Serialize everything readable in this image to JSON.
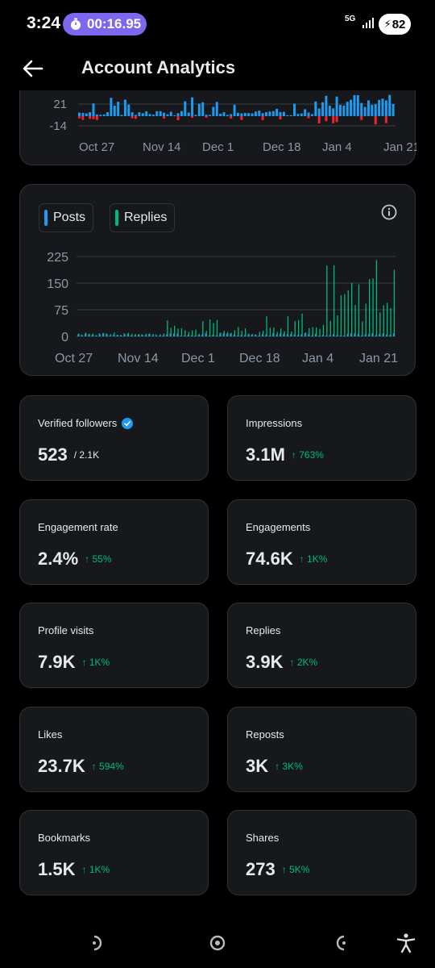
{
  "status": {
    "time": "3:24",
    "timer": "00:16.95",
    "network": "5G",
    "battery": "82"
  },
  "header": {
    "title": "Account Analytics"
  },
  "icons": {
    "back": "arrow-left-icon",
    "info": "info-icon",
    "verified": "verified-badge-icon",
    "up": "arrow-up-icon"
  },
  "colors": {
    "posts": "#1d9bf0",
    "replies": "#00ba7c",
    "negative": "#f4212e",
    "positive_change": "#00ba7c",
    "card": "#16181c",
    "border": "#2f3336"
  },
  "chart_data": [
    {
      "type": "bar",
      "y_ticks": [
        "21",
        "-14"
      ],
      "x_ticks": [
        "Oct 27",
        "Nov 14",
        "Dec 1",
        "Dec 18",
        "Jan 4",
        "Jan 21"
      ],
      "series_colors": [
        "#1d9bf0",
        "#f4212e"
      ]
    },
    {
      "type": "bar",
      "legend": [
        "Posts",
        "Replies"
      ],
      "legend_colors": [
        "#1d9bf0",
        "#00ba7c"
      ],
      "y_ticks": [
        "225",
        "150",
        "75",
        "0"
      ],
      "ylim": [
        0,
        225
      ],
      "x_ticks": [
        "Oct 27",
        "Nov 14",
        "Dec 1",
        "Dec 18",
        "Jan 4",
        "Jan 21"
      ]
    }
  ],
  "stats": [
    {
      "label": "Verified followers",
      "value": "523",
      "sub": "/ 2.1K",
      "change": ""
    },
    {
      "label": "Impressions",
      "value": "3.1M",
      "sub": "",
      "change": "↑ 763%"
    },
    {
      "label": "Engagement rate",
      "value": "2.4%",
      "sub": "",
      "change": "↑ 55%"
    },
    {
      "label": "Engagements",
      "value": "74.6K",
      "sub": "",
      "change": "↑ 1K%"
    },
    {
      "label": "Profile visits",
      "value": "7.9K",
      "sub": "",
      "change": "↑ 1K%"
    },
    {
      "label": "Replies",
      "value": "3.9K",
      "sub": "",
      "change": "↑ 2K%"
    },
    {
      "label": "Likes",
      "value": "23.7K",
      "sub": "",
      "change": "↑ 594%"
    },
    {
      "label": "Reposts",
      "value": "3K",
      "sub": "",
      "change": "↑ 3K%"
    },
    {
      "label": "Bookmarks",
      "value": "1.5K",
      "sub": "",
      "change": "↑ 1K%"
    },
    {
      "label": "Shares",
      "value": "273",
      "sub": "",
      "change": "↑ 5K%"
    }
  ],
  "nav": [
    "back-nav-icon",
    "home-nav-icon",
    "recents-nav-icon",
    "accessibility-icon"
  ]
}
